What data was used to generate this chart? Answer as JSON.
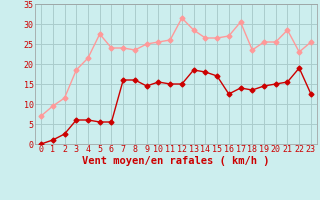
{
  "x": [
    0,
    1,
    2,
    3,
    4,
    5,
    6,
    7,
    8,
    9,
    10,
    11,
    12,
    13,
    14,
    15,
    16,
    17,
    18,
    19,
    20,
    21,
    22,
    23
  ],
  "y_mean": [
    0,
    1,
    2.5,
    6,
    6,
    5.5,
    5.5,
    16,
    16,
    14.5,
    15.5,
    15,
    15,
    18.5,
    18,
    17,
    12.5,
    14,
    13.5,
    14.5,
    15,
    15.5,
    19,
    12.5
  ],
  "y_gust": [
    7,
    9.5,
    11.5,
    18.5,
    21.5,
    27.5,
    24,
    24,
    23.5,
    25,
    25.5,
    26,
    31.5,
    28.5,
    26.5,
    26.5,
    27,
    30.5,
    23.5,
    25.5,
    25.5,
    28.5,
    23,
    25.5
  ],
  "color_mean": "#cc0000",
  "color_gust": "#ff9999",
  "bg_color": "#cceeee",
  "grid_color": "#aacccc",
  "xlabel": "Vent moyen/en rafales ( km/h )",
  "ylim": [
    0,
    35
  ],
  "xlim": [
    -0.5,
    23.5
  ],
  "yticks": [
    0,
    5,
    10,
    15,
    20,
    25,
    30,
    35
  ],
  "xticks": [
    0,
    1,
    2,
    3,
    4,
    5,
    6,
    7,
    8,
    9,
    10,
    11,
    12,
    13,
    14,
    15,
    16,
    17,
    18,
    19,
    20,
    21,
    22,
    23
  ],
  "marker_size": 2.5,
  "line_width": 1.0,
  "xlabel_color": "#cc0000",
  "xlabel_fontsize": 7.5,
  "tick_fontsize": 6,
  "tick_color": "#cc0000",
  "arrow_angles": [
    -160,
    -150,
    -145,
    -140,
    -135,
    -130,
    -130,
    -125,
    -120,
    -115,
    -110,
    -105,
    -100,
    -95,
    -90,
    -85,
    -80,
    -75,
    -70,
    -65,
    -60,
    -55,
    -50,
    -45
  ]
}
